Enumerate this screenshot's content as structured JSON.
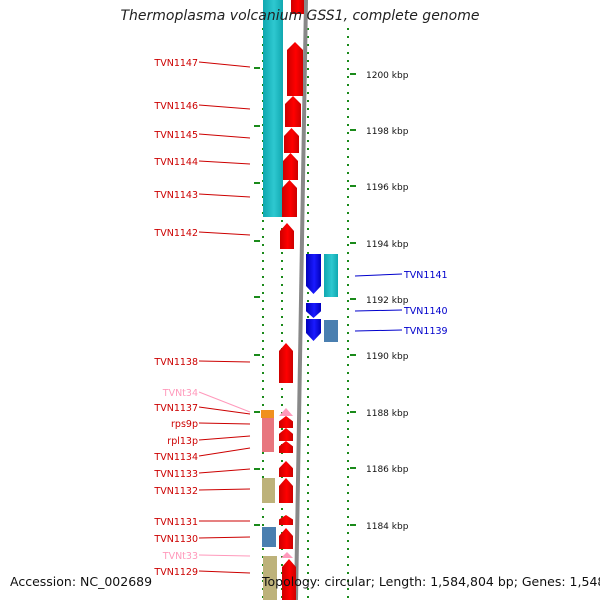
{
  "title": "Thermoplasma volcanium GSS1, complete genome",
  "footer": {
    "accession": "Accession: NC_002689",
    "summary": "Topology: circular; Length: 1,584,804 bp; Genes: 1,548"
  },
  "colors": {
    "forward": "#ff0000",
    "reverse": "#1a1aff",
    "cog_cyan": "#2ec8d0",
    "cog_steelblue": "#4a7fb0",
    "cog_olive": "#bdb27a",
    "cog_pink": "#e8767e",
    "cog_orange": "#f0901e",
    "trna": "#ff99bb",
    "tick": "#1a8a1a",
    "backbone": "#888888"
  },
  "scale": {
    "unit": "kbp",
    "labels": [
      1200,
      1198,
      1196,
      1194,
      1192,
      1190,
      1188,
      1186,
      1184
    ]
  },
  "genes": {
    "forward": [
      {
        "label": "TVN1147",
        "type": "cds"
      },
      {
        "label": "TVN1146",
        "type": "cds"
      },
      {
        "label": "TVN1145",
        "type": "cds"
      },
      {
        "label": "TVN1144",
        "type": "cds"
      },
      {
        "label": "TVN1143",
        "type": "cds"
      },
      {
        "label": "TVN1142",
        "type": "cds"
      },
      {
        "label": "TVN1138",
        "type": "cds"
      },
      {
        "label": "TVNt34",
        "type": "trna"
      },
      {
        "label": "TVN1137",
        "type": "cds"
      },
      {
        "label": "rps9p",
        "type": "cds"
      },
      {
        "label": "rpl13p",
        "type": "cds"
      },
      {
        "label": "TVN1134",
        "type": "cds"
      },
      {
        "label": "TVN1133",
        "type": "cds"
      },
      {
        "label": "TVN1132",
        "type": "cds"
      },
      {
        "label": "TVN1131",
        "type": "cds"
      },
      {
        "label": "TVN1130",
        "type": "cds"
      },
      {
        "label": "TVNt33",
        "type": "trna"
      },
      {
        "label": "TVN1129",
        "type": "cds"
      }
    ],
    "reverse": [
      {
        "label": "TVN1141",
        "type": "cds"
      },
      {
        "label": "TVN1140",
        "type": "cds"
      },
      {
        "label": "TVN1139",
        "type": "cds"
      }
    ]
  }
}
